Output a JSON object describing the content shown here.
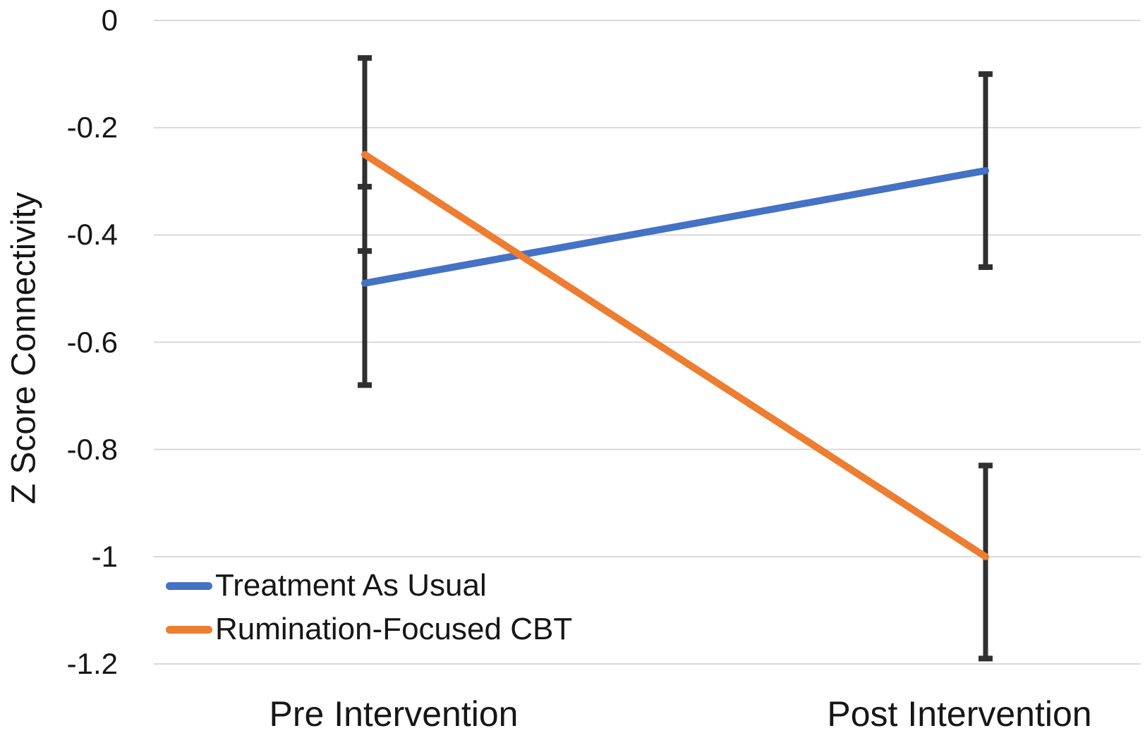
{
  "chart_data": {
    "type": "line",
    "title": "",
    "xlabel": "",
    "ylabel": "Z Score Connectivity",
    "categories": [
      "Pre Intervention",
      "Post Intervention"
    ],
    "ylim": [
      -1.2,
      0
    ],
    "yticks": [
      0,
      -0.2,
      -0.4,
      -0.6,
      -0.8,
      -1,
      -1.2
    ],
    "ytick_labels": [
      "0",
      "-0.2",
      "-0.4",
      "-0.6",
      "-0.8",
      "-1",
      "-1.2"
    ],
    "grid": "horizontal",
    "gridline_color": "#d9d9d9",
    "error_bar_color": "#303030",
    "legend_position": "inside-bottom-left",
    "series": [
      {
        "name": "Treatment As Usual",
        "color": "#4472C4",
        "values": [
          -0.49,
          -0.28
        ],
        "error_upper": [
          -0.31,
          -0.1
        ],
        "error_lower": [
          -0.68,
          -0.46
        ]
      },
      {
        "name": "Rumination-Focused CBT",
        "color": "#ED7D31",
        "values": [
          -0.25,
          -1.0
        ],
        "error_upper": [
          -0.07,
          -0.83
        ],
        "error_lower": [
          -0.43,
          -1.19
        ]
      }
    ]
  }
}
